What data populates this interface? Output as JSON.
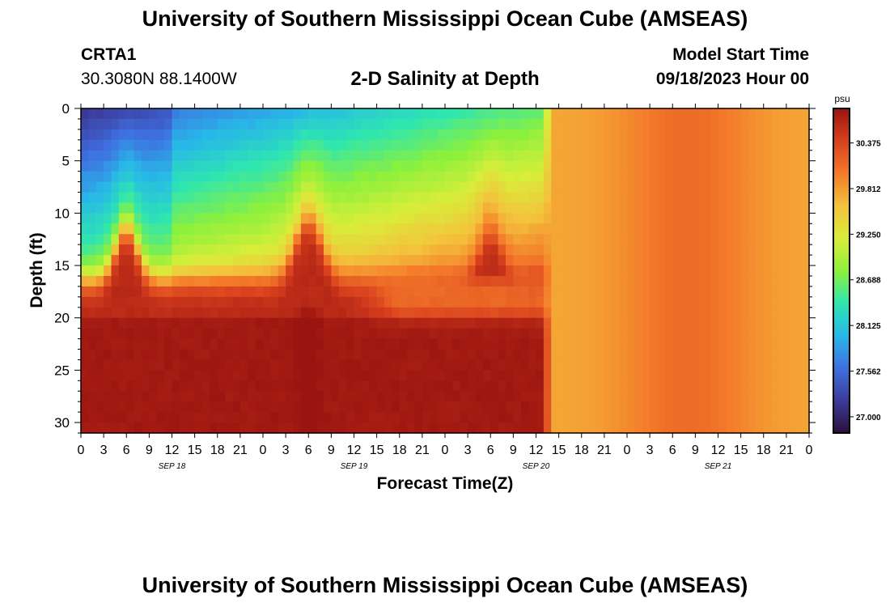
{
  "header": {
    "title": "University of Southern Mississippi Ocean Cube (AMSEAS)",
    "station_name": "CRTA1",
    "station_coords": "30.3080N  88.1400W",
    "plot_title": "2-D Salinity at Depth",
    "model_start_label": "Model Start Time",
    "model_start_value": "09/18/2023 Hour 00"
  },
  "footer": {
    "title": "University of Southern Mississippi Ocean Cube (AMSEAS)"
  },
  "chart_data": {
    "type": "heatmap",
    "title": "2-D Salinity at Depth",
    "xlabel": "Forecast Time(Z)",
    "ylabel": "Depth (ft)",
    "x_unit_hours_per_step": 3,
    "xlim_hours": [
      0,
      96
    ],
    "ylim_depth_ft": [
      0,
      31
    ],
    "y_ticks": [
      0,
      5,
      10,
      15,
      20,
      25,
      30
    ],
    "x_tick_labels": [
      "0",
      "3",
      "6",
      "9",
      "12",
      "15",
      "18",
      "21",
      "0",
      "3",
      "6",
      "9",
      "12",
      "15",
      "18",
      "21",
      "0",
      "3",
      "6",
      "9",
      "12",
      "15",
      "18",
      "21",
      "0",
      "3",
      "6",
      "9",
      "12",
      "15",
      "18",
      "21",
      "0"
    ],
    "date_labels": [
      {
        "label": "SEP 18",
        "hour": 12
      },
      {
        "label": "SEP 19",
        "hour": 36
      },
      {
        "label": "SEP 20",
        "hour": 60
      },
      {
        "label": "SEP 21",
        "hour": 84
      }
    ],
    "colorbar": {
      "unit": "psu",
      "min": 26.8,
      "max": 30.8,
      "tick_values": [
        27.0,
        27.562,
        28.125,
        28.688,
        29.25,
        29.812,
        30.375
      ],
      "tick_labels": [
        "27.000",
        "27.562",
        "28.125",
        "28.688",
        "29.250",
        "29.812",
        "30.375"
      ],
      "colors": [
        "#2b0f3a",
        "#3b3b9a",
        "#3f6fe0",
        "#28b8e8",
        "#2ee6b0",
        "#8cf03c",
        "#d8ee3a",
        "#f4c23c",
        "#f47a2a",
        "#d8401e",
        "#9a1410"
      ]
    },
    "model": {
      "surface_salinity": 27.4,
      "deep_salinity": 30.75,
      "fresh_layer_bottom_ft": 16.5,
      "mixing_start_hour": 61,
      "mixed_hour": 62,
      "mixed_salinity_range": [
        29.75,
        30.1
      ],
      "bumps": [
        {
          "center_hour": 6,
          "width_hours": 2,
          "rise_ft": 5
        },
        {
          "center_hour": 30,
          "width_hours": 2.4,
          "rise_ft": 5.5
        },
        {
          "center_hour": 54,
          "width_hours": 2,
          "rise_ft": 4
        }
      ]
    }
  }
}
